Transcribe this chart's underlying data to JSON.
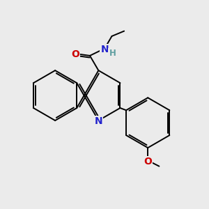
{
  "background_color": "#ebebeb",
  "bond_color": "#000000",
  "figsize": [
    3.0,
    3.0
  ],
  "dpi": 100,
  "atom_colors": {
    "N": "#2222cc",
    "O": "#cc0000",
    "C": "#000000",
    "H": "#5f9ea0"
  },
  "bond_lw": 1.4,
  "font_size": 10.0
}
